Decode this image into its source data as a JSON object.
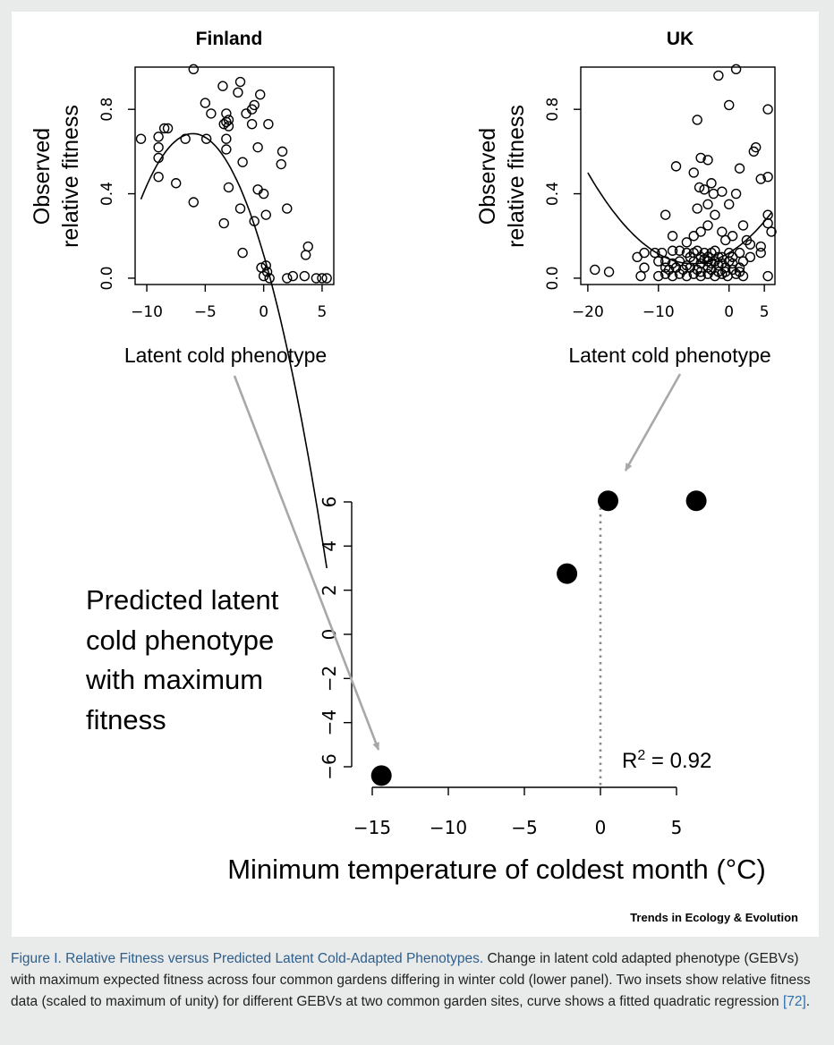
{
  "figure": {
    "brand": "Trends in Ecology & Evolution",
    "predicted_label_lines": [
      "Predicted latent",
      "cold phenotype",
      "with maximum",
      "fitness"
    ]
  },
  "caption": {
    "title": "Figure I. Relative Fitness versus Predicted Latent Cold-Adapted Phenotypes.",
    "body": " Change in latent cold adapted phenotype (GEBVs) with maximum expected fitness across four common gardens differing in winter cold (lower panel). Two insets show relative fitness data (scaled to maximum of unity) for different GEBVs at two common garden sites, curve shows a fitted quadratic regression ",
    "ref": "[72]",
    "end": "."
  },
  "chart_data": [
    {
      "id": "finland",
      "type": "scatter",
      "title": "Finland",
      "xlabel": "Latent cold phenotype",
      "ylabel": "Observed relative fitness",
      "xlim": [
        -11,
        6
      ],
      "ylim": [
        -0.03,
        1.0
      ],
      "xticks": [
        -10,
        -5,
        0,
        5
      ],
      "yticks": [
        0.0,
        0.4,
        0.8
      ],
      "ytick_labels": [
        "0.0",
        "0.4",
        "0.8"
      ],
      "fit": {
        "type": "quadratic",
        "a": -0.0157,
        "b": -0.19,
        "c": 0.11,
        "x_range": [
          -10.5,
          5.4
        ]
      },
      "points": [
        [
          -6,
          0.99
        ],
        [
          -10.5,
          0.66
        ],
        [
          -9,
          0.67
        ],
        [
          -8.5,
          0.71
        ],
        [
          -8.2,
          0.71
        ],
        [
          -9,
          0.62
        ],
        [
          -9,
          0.57
        ],
        [
          -9,
          0.48
        ],
        [
          -7.5,
          0.45
        ],
        [
          -6.7,
          0.66
        ],
        [
          -6,
          0.36
        ],
        [
          -5,
          0.83
        ],
        [
          -4.5,
          0.78
        ],
        [
          -4.9,
          0.66
        ],
        [
          -3.5,
          0.91
        ],
        [
          -3,
          0.75
        ],
        [
          -3.2,
          0.74
        ],
        [
          -3.4,
          0.73
        ],
        [
          -3.2,
          0.78
        ],
        [
          -3,
          0.72
        ],
        [
          -3.2,
          0.66
        ],
        [
          -3.2,
          0.61
        ],
        [
          -3,
          0.43
        ],
        [
          -2.2,
          0.88
        ],
        [
          -2,
          0.93
        ],
        [
          -1.5,
          0.78
        ],
        [
          -1,
          0.8
        ],
        [
          -0.8,
          0.82
        ],
        [
          -1,
          0.73
        ],
        [
          -0.3,
          0.87
        ],
        [
          0.4,
          0.73
        ],
        [
          -0.5,
          0.62
        ],
        [
          -1.8,
          0.55
        ],
        [
          -2,
          0.33
        ],
        [
          -3.4,
          0.26
        ],
        [
          -0.5,
          0.42
        ],
        [
          0,
          0.4
        ],
        [
          -0.8,
          0.27
        ],
        [
          0.2,
          0.3
        ],
        [
          -1.8,
          0.12
        ],
        [
          1.6,
          0.6
        ],
        [
          1.5,
          0.54
        ],
        [
          2,
          0.33
        ],
        [
          -0.2,
          0.05
        ],
        [
          0.2,
          0.06
        ],
        [
          0.3,
          0.03
        ],
        [
          0,
          0.01
        ],
        [
          0.5,
          0.0
        ],
        [
          2,
          0.0
        ],
        [
          2.5,
          0.01
        ],
        [
          3.8,
          0.15
        ],
        [
          3.6,
          0.11
        ],
        [
          3.5,
          0.01
        ],
        [
          4.5,
          0.0
        ],
        [
          5,
          0.0
        ],
        [
          5.4,
          0.0
        ]
      ]
    },
    {
      "id": "uk",
      "type": "scatter",
      "title": "UK",
      "xlabel": "Latent cold phenotype",
      "ylabel": "Observed relative fitness",
      "xlim": [
        -21,
        6.5
      ],
      "ylim": [
        -0.03,
        1.0
      ],
      "xticks": [
        -20,
        -10,
        0,
        5
      ],
      "yticks": [
        0.0,
        0.4,
        0.8
      ],
      "ytick_labels": [
        "0.0",
        "0.4",
        "0.8"
      ],
      "fit": {
        "type": "quadratic",
        "a": 0.00195,
        "b": 0.02,
        "c": 0.12,
        "x_range": [
          -20,
          6
        ]
      },
      "points": [
        [
          1,
          0.99
        ],
        [
          -1.5,
          0.96
        ],
        [
          0,
          0.82
        ],
        [
          -4.5,
          0.75
        ],
        [
          5.5,
          0.8
        ],
        [
          -7.5,
          0.53
        ],
        [
          -5,
          0.5
        ],
        [
          -4,
          0.57
        ],
        [
          -3,
          0.56
        ],
        [
          1.5,
          0.52
        ],
        [
          3.5,
          0.6
        ],
        [
          3.8,
          0.62
        ],
        [
          5.5,
          0.48
        ],
        [
          4.5,
          0.47
        ],
        [
          -9,
          0.3
        ],
        [
          -4.2,
          0.43
        ],
        [
          -3.5,
          0.42
        ],
        [
          -2.5,
          0.45
        ],
        [
          -2.2,
          0.4
        ],
        [
          -1,
          0.41
        ],
        [
          -4.5,
          0.33
        ],
        [
          -3,
          0.35
        ],
        [
          -2,
          0.3
        ],
        [
          0,
          0.35
        ],
        [
          1,
          0.4
        ],
        [
          2,
          0.25
        ],
        [
          5.5,
          0.3
        ],
        [
          5.5,
          0.26
        ],
        [
          6,
          0.22
        ],
        [
          -8,
          0.2
        ],
        [
          -6,
          0.17
        ],
        [
          -5,
          0.2
        ],
        [
          -4,
          0.22
        ],
        [
          -3,
          0.25
        ],
        [
          -1,
          0.22
        ],
        [
          -0.5,
          0.18
        ],
        [
          0.5,
          0.2
        ],
        [
          2.5,
          0.18
        ],
        [
          3,
          0.16
        ],
        [
          4.5,
          0.15
        ],
        [
          4.5,
          0.12
        ],
        [
          -12,
          0.12
        ],
        [
          -10.5,
          0.12
        ],
        [
          -9.5,
          0.12
        ],
        [
          -8,
          0.13
        ],
        [
          -7,
          0.13
        ],
        [
          -6,
          0.12
        ],
        [
          -5.5,
          0.1
        ],
        [
          -5,
          0.12
        ],
        [
          -4.5,
          0.13
        ],
        [
          -4,
          0.1
        ],
        [
          -3.5,
          0.12
        ],
        [
          -3,
          0.1
        ],
        [
          -2.5,
          0.12
        ],
        [
          -2,
          0.13
        ],
        [
          -1.5,
          0.1
        ],
        [
          -1,
          0.1
        ],
        [
          0,
          0.12
        ],
        [
          0.5,
          0.1
        ],
        [
          1.5,
          0.12
        ],
        [
          3,
          0.1
        ],
        [
          -13,
          0.1
        ],
        [
          -10,
          0.08
        ],
        [
          -9,
          0.08
        ],
        [
          -8,
          0.07
        ],
        [
          -7,
          0.08
        ],
        [
          -6,
          0.06
        ],
        [
          -5,
          0.08
        ],
        [
          -4,
          0.07
        ],
        [
          -3.5,
          0.09
        ],
        [
          -3,
          0.08
        ],
        [
          -2.5,
          0.07
        ],
        [
          -2,
          0.08
        ],
        [
          -1.5,
          0.06
        ],
        [
          -1,
          0.07
        ],
        [
          -0.5,
          0.05
        ],
        [
          0,
          0.08
        ],
        [
          0.5,
          0.07
        ],
        [
          1.5,
          0.05
        ],
        [
          2,
          0.08
        ],
        [
          -12,
          0.05
        ],
        [
          -9,
          0.05
        ],
        [
          -8.5,
          0.04
        ],
        [
          -7.5,
          0.05
        ],
        [
          -6.5,
          0.04
        ],
        [
          -5.5,
          0.05
        ],
        [
          -4.5,
          0.04
        ],
        [
          -4,
          0.03
        ],
        [
          -3,
          0.05
        ],
        [
          -2.5,
          0.04
        ],
        [
          -1.5,
          0.03
        ],
        [
          -0.5,
          0.03
        ],
        [
          0.5,
          0.04
        ],
        [
          1.5,
          0.03
        ],
        [
          -9,
          0.02
        ],
        [
          -8,
          0.01
        ],
        [
          -7,
          0.02
        ],
        [
          -6,
          0.01
        ],
        [
          -5,
          0.02
        ],
        [
          -4,
          0.01
        ],
        [
          -3,
          0.02
        ],
        [
          -2,
          0.01
        ],
        [
          -1,
          0.02
        ],
        [
          -0.2,
          0.01
        ],
        [
          1,
          0.02
        ],
        [
          2,
          0.01
        ],
        [
          5.5,
          0.01
        ],
        [
          -12.5,
          0.01
        ],
        [
          -10,
          0.01
        ],
        [
          -17,
          0.03
        ],
        [
          -19,
          0.04
        ]
      ]
    },
    {
      "id": "main",
      "type": "scatter",
      "xlabel": "Minimum temperature of coldest month (°C)",
      "xlim": [
        -15.5,
        6.8
      ],
      "ylim": [
        -6.9,
        6.5
      ],
      "xticks": [
        -15,
        -10,
        -5,
        0,
        5
      ],
      "xtick_labels": [
        "−15",
        "−10",
        "−5",
        "0",
        "5"
      ],
      "yticks": [
        -6,
        -4,
        -2,
        0,
        2,
        4,
        6
      ],
      "ytick_labels": [
        "−6",
        "−4",
        "−2",
        "0",
        "2",
        "4",
        "6"
      ],
      "vline_x": 0,
      "annotation": {
        "text": "R",
        "sup": "2",
        "rest": " = 0.92"
      },
      "points": [
        [
          -14.4,
          -6.4
        ],
        [
          -2.2,
          2.75
        ],
        [
          0.5,
          6.05
        ],
        [
          6.3,
          6.05
        ]
      ]
    }
  ]
}
